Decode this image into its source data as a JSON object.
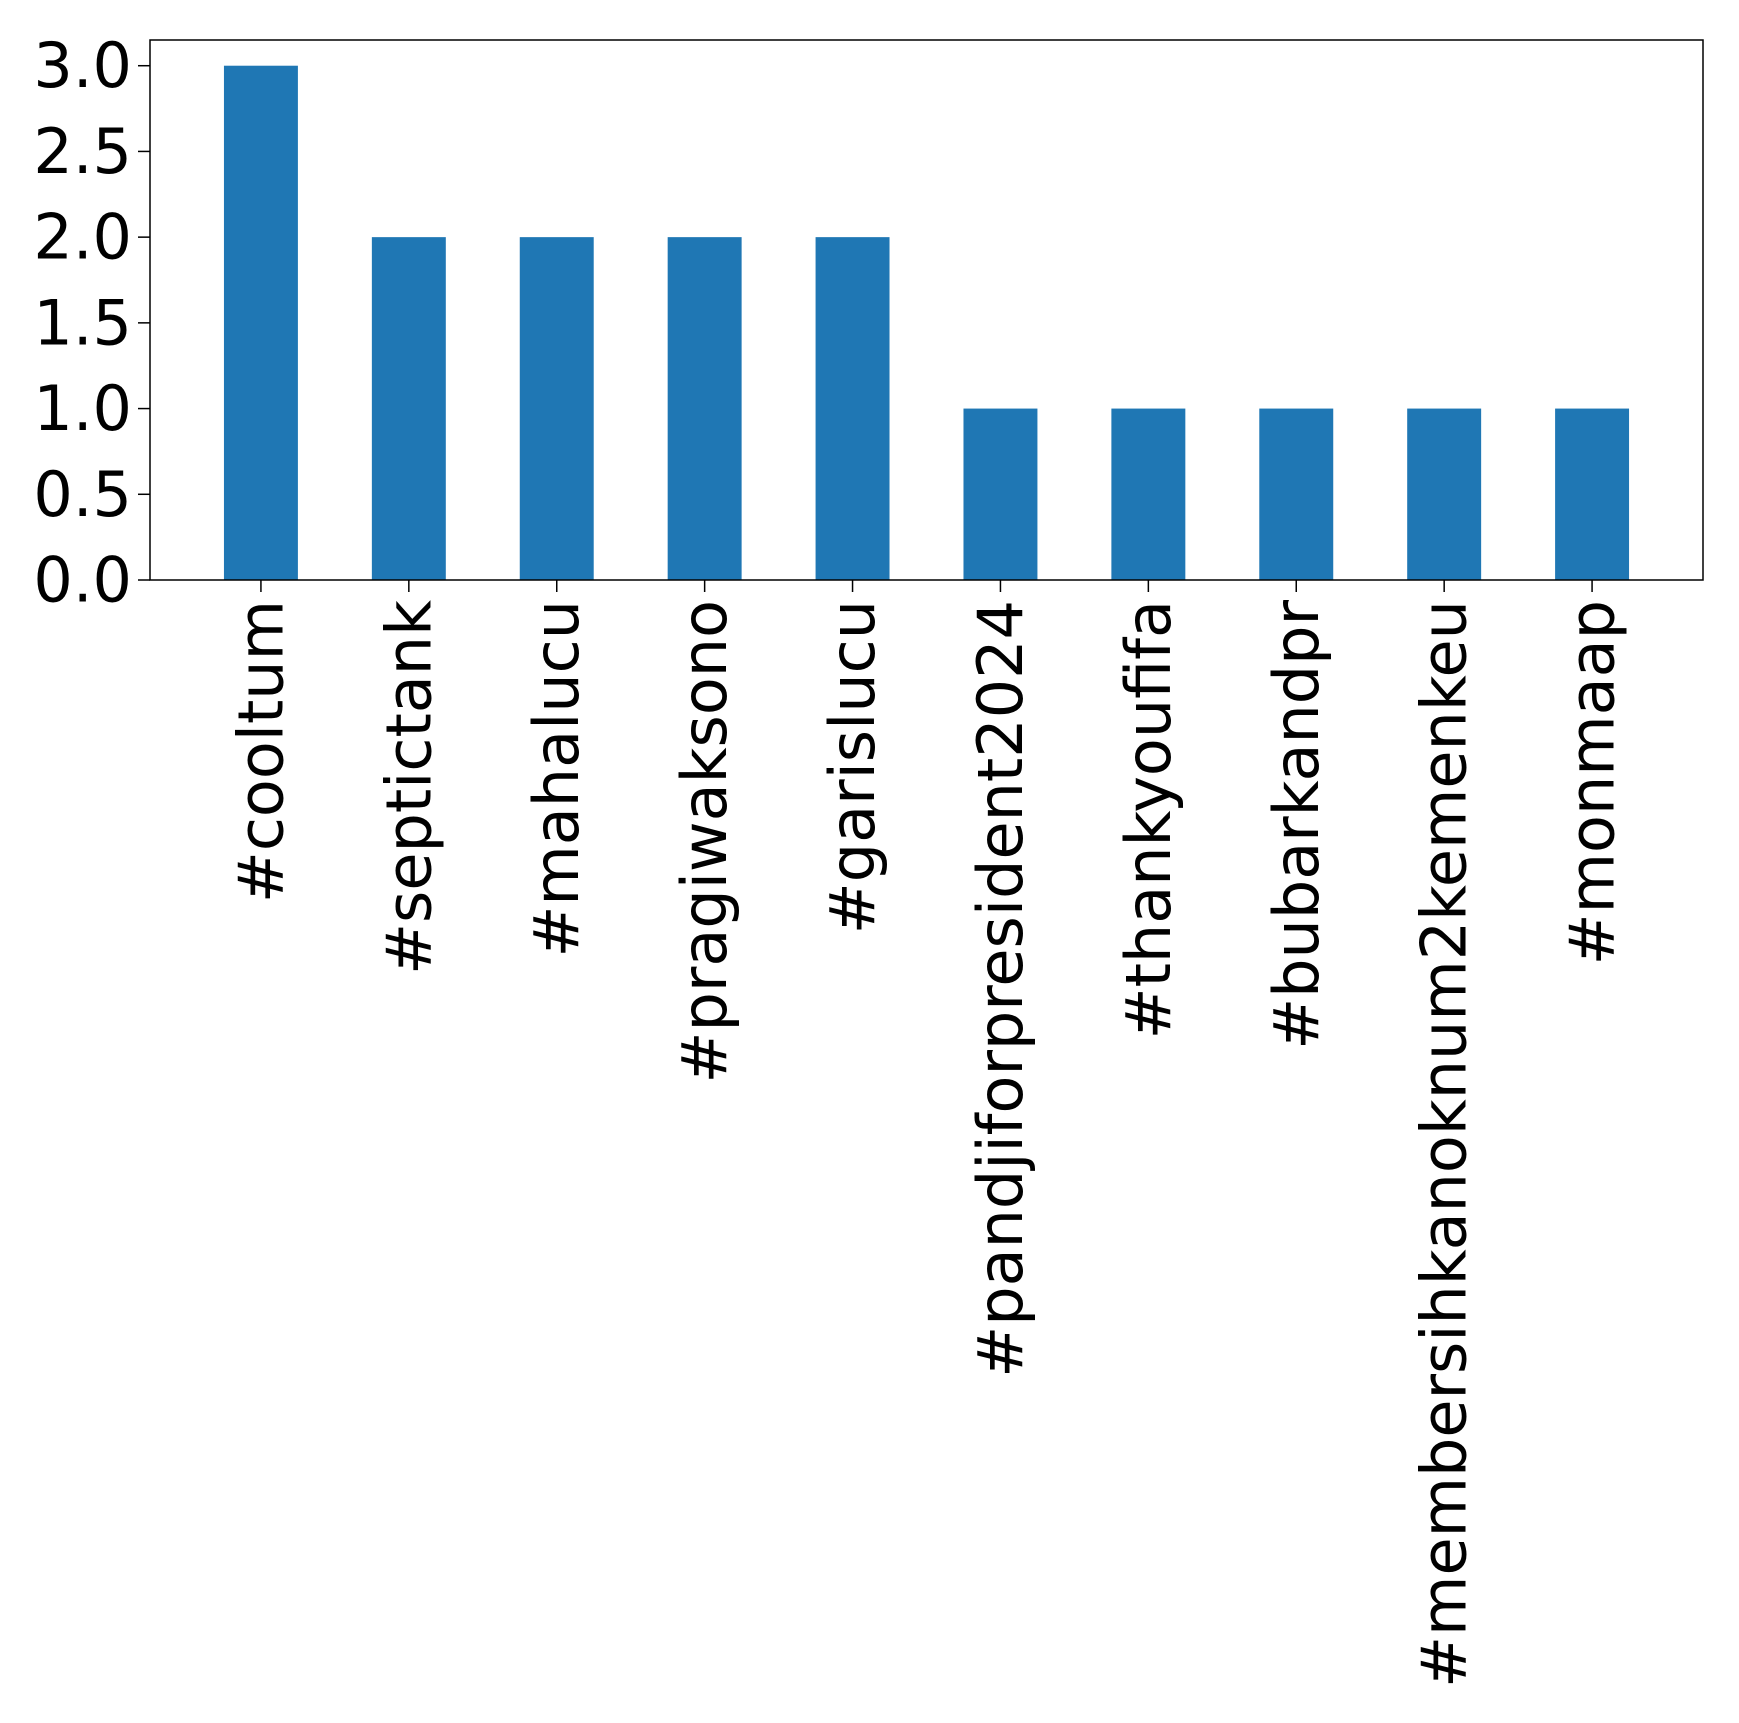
{
  "chart_data": {
    "type": "bar",
    "title": "",
    "xlabel": "",
    "ylabel": "",
    "categories": [
      "#cooltum",
      "#septictank",
      "#mahalucu",
      "#pragiwaksono",
      "#garislucu",
      "#pandjiforpresident2024",
      "#thankyoufifa",
      "#bubarkandpr",
      "#membersihkanoknum2kemenkeu",
      "#monmaap"
    ],
    "values": [
      3,
      2,
      2,
      2,
      2,
      1,
      1,
      1,
      1,
      1
    ],
    "ylim": [
      0,
      3.15
    ],
    "yticks": [
      "0.0",
      "0.5",
      "1.0",
      "1.5",
      "2.0",
      "2.5",
      "3.0"
    ],
    "bar_color": "#1f77b4",
    "grid": false,
    "legend": "none"
  }
}
